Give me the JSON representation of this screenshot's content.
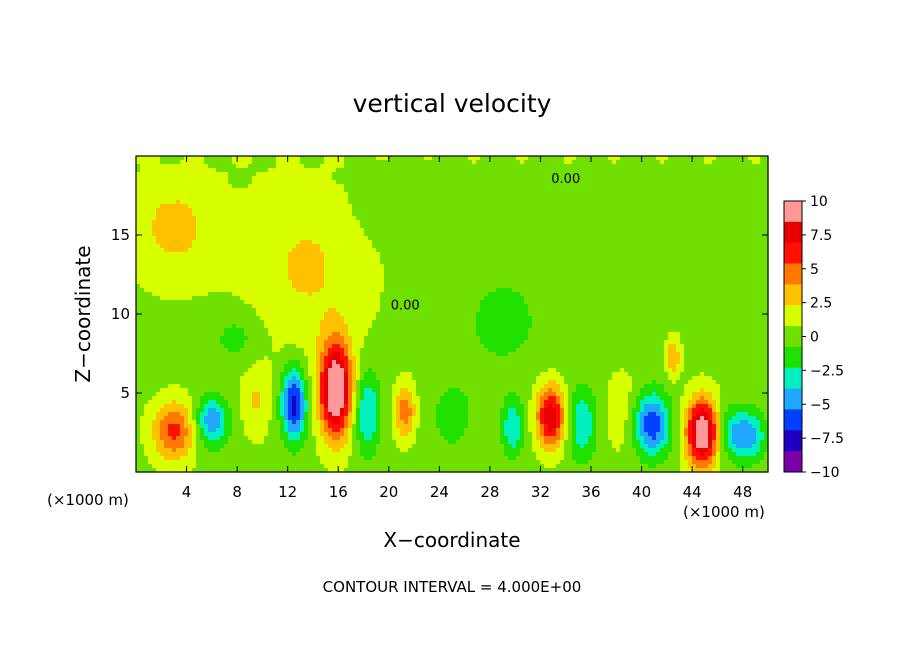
{
  "chart_data": {
    "type": "heatmap",
    "title": "vertical velocity",
    "xlabel": "X−coordinate",
    "ylabel": "Z−coordinate",
    "x_unit_left": "(×1000 m)",
    "x_unit_right": "(×1000 m)",
    "footer": "CONTOUR INTERVAL = 4.000E+00",
    "xlim": [
      0,
      50
    ],
    "ylim": [
      0,
      20
    ],
    "x_ticks": [
      4,
      8,
      12,
      16,
      20,
      24,
      28,
      32,
      36,
      40,
      44,
      48
    ],
    "x_tick_labels": [
      "4",
      "8",
      "12",
      "16",
      "20",
      "24",
      "28",
      "32",
      "36",
      "40",
      "44",
      "48"
    ],
    "y_ticks": [
      5,
      10,
      15
    ],
    "y_tick_labels": [
      "5",
      "10",
      "15"
    ],
    "contour_labels": [
      {
        "text": "0.00",
        "x": 34,
        "y": 18.3
      },
      {
        "text": "0.00",
        "x": 21.3,
        "y": 10.3
      }
    ],
    "colorbar": {
      "range": [
        -10,
        10
      ],
      "ticks": [
        10,
        7.5,
        5,
        2.5,
        0,
        -2.5,
        -5,
        -7.5,
        -10
      ],
      "tick_labels": [
        "10",
        "7.5",
        "5",
        "2.5",
        "0",
        "−2.5",
        "−5",
        "−7.5",
        "−10"
      ],
      "colors": [
        "#7a00a8",
        "#2000c0",
        "#0040ff",
        "#20a8ff",
        "#00f0c0",
        "#20e000",
        "#70e000",
        "#d8ff00",
        "#ffc000",
        "#ff7800",
        "#ff1000",
        "#e80000",
        "#ff9898"
      ]
    },
    "features": [
      {
        "x": 3,
        "z": 2.6,
        "sx": 1.2,
        "sz": 1.3,
        "w": 5.5
      },
      {
        "x": 6,
        "z": 3.2,
        "sx": 0.9,
        "sz": 1.1,
        "w": -5.5
      },
      {
        "x": 9.5,
        "z": 4.5,
        "sx": 0.8,
        "sz": 1.6,
        "w": 2
      },
      {
        "x": 12.5,
        "z": 4.3,
        "sx": 0.7,
        "sz": 1.6,
        "w": -8
      },
      {
        "x": 15.8,
        "z": 5.2,
        "sx": 0.9,
        "sz": 2.1,
        "w": 11
      },
      {
        "x": 18.3,
        "z": 3.8,
        "sx": 0.7,
        "sz": 1.8,
        "w": -4.5
      },
      {
        "x": 21.3,
        "z": 3.8,
        "sx": 0.6,
        "sz": 1.2,
        "w": 4.5
      },
      {
        "x": 25,
        "z": 3.5,
        "sx": 1.5,
        "sz": 2,
        "w": -1.5
      },
      {
        "x": 29.8,
        "z": 2.8,
        "sx": 0.6,
        "sz": 1.3,
        "w": -4
      },
      {
        "x": 32.8,
        "z": 3.5,
        "sx": 0.8,
        "sz": 1.4,
        "w": 8
      },
      {
        "x": 35.3,
        "z": 3,
        "sx": 0.8,
        "sz": 1.6,
        "w": -4
      },
      {
        "x": 38.5,
        "z": 4,
        "sx": 1,
        "sz": 2,
        "w": 1.5
      },
      {
        "x": 40.8,
        "z": 3,
        "sx": 1,
        "sz": 1.4,
        "w": -7
      },
      {
        "x": 44.8,
        "z": 2.5,
        "sx": 0.9,
        "sz": 1.5,
        "w": 10.5
      },
      {
        "x": 48.5,
        "z": 2.3,
        "sx": 0.9,
        "sz": 1.1,
        "w": -5
      },
      {
        "x": 47,
        "z": 2.5,
        "sx": 0.8,
        "sz": 1.2,
        "w": -3
      },
      {
        "x": 42.5,
        "z": 7.3,
        "sx": 0.4,
        "sz": 0.9,
        "w": 3.5
      },
      {
        "x": 13.5,
        "z": 13,
        "sx": 3.5,
        "sz": 4,
        "w": 2.2
      },
      {
        "x": 3,
        "z": 15.5,
        "sx": 2.5,
        "sz": 2.5,
        "w": 2.5
      },
      {
        "x": 29,
        "z": 9.5,
        "sx": 2.5,
        "sz": 2.5,
        "w": -1.5
      },
      {
        "x": 38,
        "z": 12,
        "sx": 3,
        "sz": 3,
        "w": -1
      },
      {
        "x": 8,
        "z": 8.5,
        "sx": 1.5,
        "sz": 1.2,
        "w": -1.8
      },
      {
        "x": 20,
        "z": 17,
        "sx": 2,
        "sz": 1.5,
        "w": -1.2
      }
    ]
  }
}
